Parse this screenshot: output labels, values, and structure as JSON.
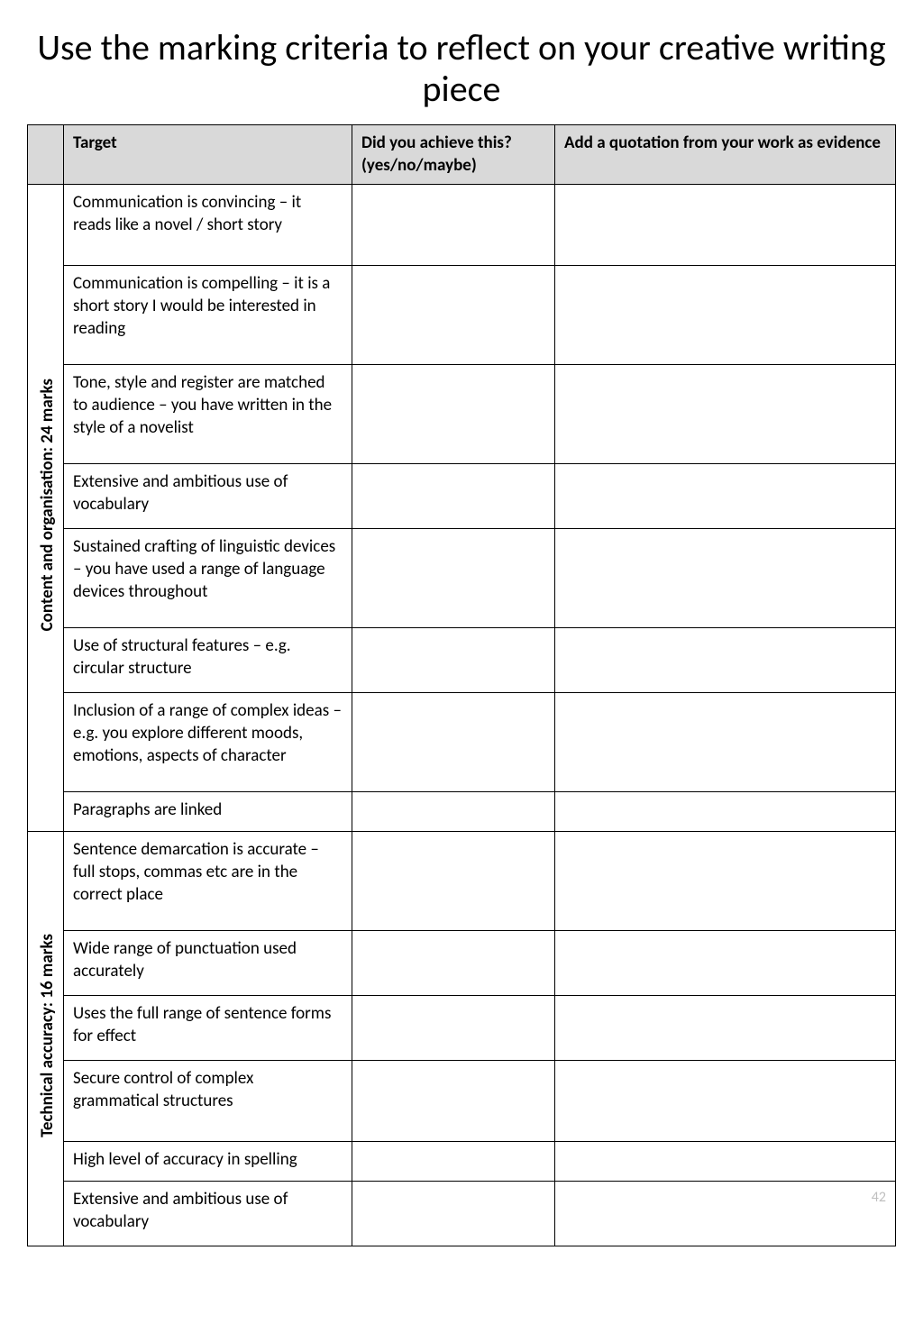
{
  "title": "Use the marking criteria to reflect on your creative writing piece",
  "headers": {
    "target": "Target",
    "achieve": "Did you achieve this? (yes/no/maybe)",
    "quote": "Add a quotation from your work as evidence"
  },
  "sections": [
    {
      "label": "Content and organisation: 24 marks",
      "rows": [
        {
          "target": "Communication is convincing – it reads like a novel / short story",
          "achieve": "",
          "quote": ""
        },
        {
          "target": "Communication is compelling – it is a short story I would be interested in reading",
          "achieve": "",
          "quote": ""
        },
        {
          "target": "Tone, style and register are matched to audience – you have written in the style of a novelist",
          "achieve": "",
          "quote": ""
        },
        {
          "target": "Extensive and ambitious use of vocabulary",
          "achieve": "",
          "quote": ""
        },
        {
          "target": "Sustained crafting of linguistic devices – you have used a range of language devices throughout",
          "achieve": "",
          "quote": ""
        },
        {
          "target": "Use of structural features – e.g. circular structure",
          "achieve": "",
          "quote": ""
        },
        {
          "target": "Inclusion of a range of complex ideas – e.g. you explore different moods, emotions, aspects of character",
          "achieve": "",
          "quote": ""
        },
        {
          "target": "Paragraphs are linked",
          "achieve": "",
          "quote": ""
        }
      ]
    },
    {
      "label": "Technical accuracy: 16 marks",
      "rows": [
        {
          "target": "Sentence demarcation is accurate – full stops, commas etc are in the correct place",
          "achieve": "",
          "quote": ""
        },
        {
          "target": "Wide range of punctuation used accurately",
          "achieve": "",
          "quote": ""
        },
        {
          "target": "Uses the full range of sentence forms for effect",
          "achieve": "",
          "quote": ""
        },
        {
          "target": "Secure control of complex grammatical structures",
          "achieve": "",
          "quote": ""
        },
        {
          "target": "High level of accuracy in spelling",
          "achieve": "",
          "quote": ""
        },
        {
          "target": "Extensive and ambitious use of vocabulary",
          "achieve": "",
          "quote": ""
        }
      ]
    }
  ],
  "page_number": "42"
}
